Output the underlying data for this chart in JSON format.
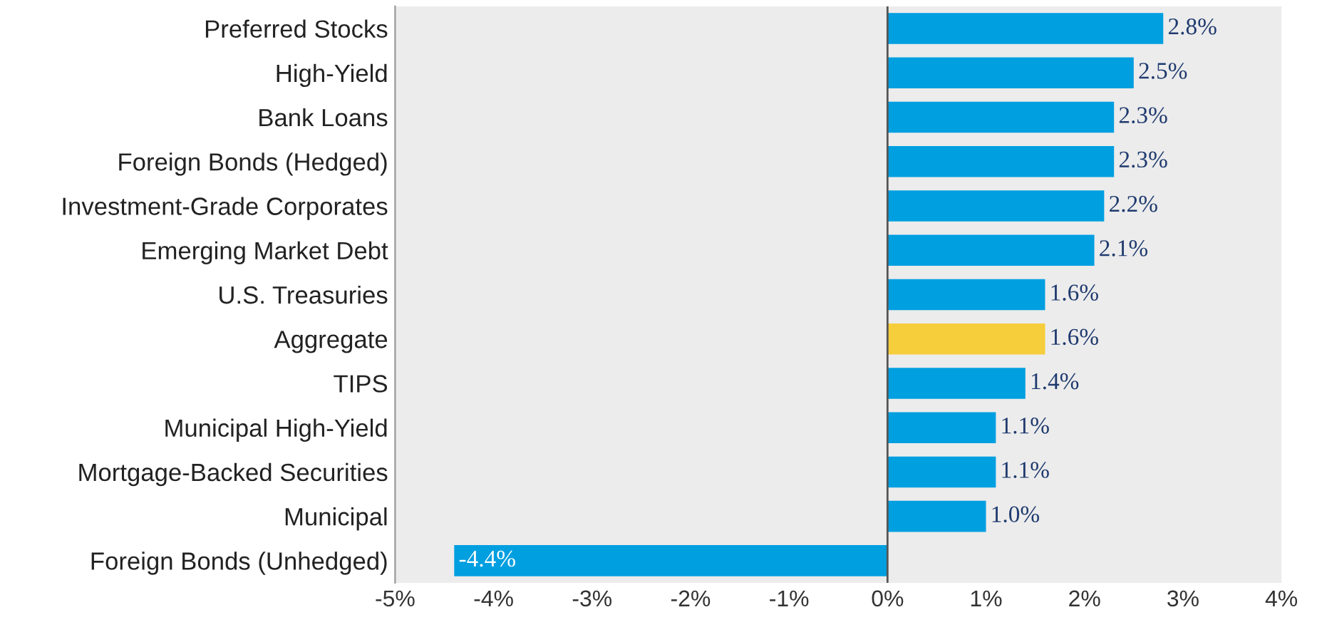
{
  "chart_data": {
    "type": "bar",
    "orientation": "horizontal",
    "categories": [
      "Preferred Stocks",
      "High-Yield",
      "Bank Loans",
      "Foreign Bonds (Hedged)",
      "Investment-Grade Corporates",
      "Emerging Market Debt",
      "U.S. Treasuries",
      "Aggregate",
      "TIPS",
      "Municipal High-Yield",
      "Mortgage-Backed Securities",
      "Municipal",
      "Foreign Bonds (Unhedged)"
    ],
    "values": [
      2.8,
      2.5,
      2.3,
      2.3,
      2.2,
      2.1,
      1.6,
      1.6,
      1.4,
      1.1,
      1.1,
      1.0,
      -4.4
    ],
    "value_labels": [
      "2.8%",
      "2.5%",
      "2.3%",
      "2.3%",
      "2.2%",
      "2.1%",
      "1.6%",
      "1.6%",
      "1.4%",
      "1.1%",
      "1.1%",
      "1.0%",
      "-4.4%"
    ],
    "colors": [
      "#009fe0",
      "#009fe0",
      "#009fe0",
      "#009fe0",
      "#009fe0",
      "#009fe0",
      "#009fe0",
      "#f6cd3b",
      "#009fe0",
      "#009fe0",
      "#009fe0",
      "#009fe0",
      "#009fe0"
    ],
    "xlim": [
      -5,
      4
    ],
    "xticks": [
      {
        "value": -5,
        "label": "-5%"
      },
      {
        "value": -4,
        "label": "-4%"
      },
      {
        "value": -3,
        "label": "-3%"
      },
      {
        "value": -2,
        "label": "-2%"
      },
      {
        "value": -1,
        "label": "-1%"
      },
      {
        "value": 0,
        "label": "0%"
      },
      {
        "value": 1,
        "label": "1%"
      },
      {
        "value": 2,
        "label": "2%"
      },
      {
        "value": 3,
        "label": "3%"
      },
      {
        "value": 4,
        "label": "4%"
      }
    ],
    "ref_lines": [
      {
        "axis": "x",
        "value": 0,
        "color": "#555555"
      }
    ],
    "grid": false,
    "legend": false
  }
}
